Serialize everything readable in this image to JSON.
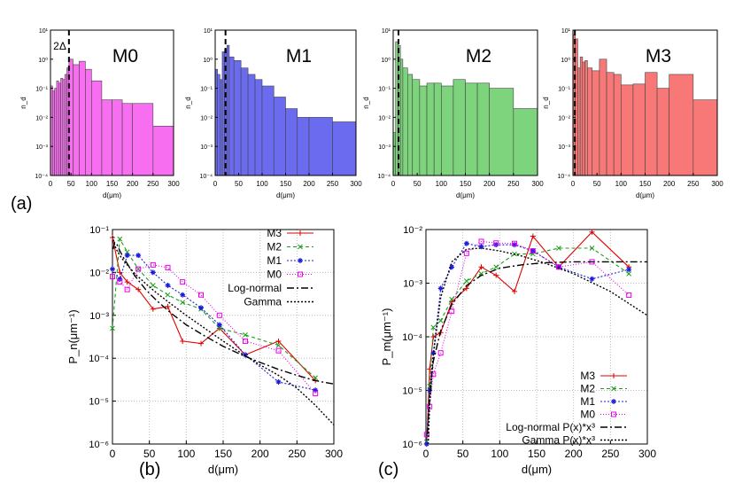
{
  "chart_data": [
    {
      "type": "bar",
      "title": "M0",
      "xlabel": "d(μm)",
      "ylabel": "n_d",
      "color": "#f86ef0",
      "annotation": "2Δ",
      "dashed_line_x": 45,
      "xlim": [
        0,
        300
      ],
      "ylim": [
        0.0001,
        10
      ],
      "xticks": [
        "0",
        "50",
        "100",
        "150",
        "200",
        "250",
        "300"
      ],
      "yticks": [
        "10⁻⁴",
        "10⁻³",
        "10⁻²",
        "10⁻¹",
        "10⁰",
        "10¹"
      ],
      "bins": [
        [
          0,
          5,
          0.12
        ],
        [
          5,
          10,
          0.08
        ],
        [
          10,
          15,
          0.1
        ],
        [
          15,
          20,
          0.18
        ],
        [
          20,
          25,
          0.15
        ],
        [
          25,
          30,
          0.22
        ],
        [
          30,
          35,
          0.2
        ],
        [
          35,
          40,
          0.3
        ],
        [
          40,
          45,
          0.5
        ],
        [
          45,
          55,
          1.0
        ],
        [
          55,
          70,
          0.65
        ],
        [
          70,
          85,
          0.85
        ],
        [
          85,
          100,
          0.45
        ],
        [
          100,
          125,
          0.18
        ],
        [
          125,
          150,
          0.04
        ],
        [
          150,
          175,
          0.04
        ],
        [
          175,
          200,
          0.03
        ],
        [
          200,
          250,
          0.03
        ],
        [
          250,
          300,
          0.005
        ]
      ]
    },
    {
      "type": "bar",
      "title": "M1",
      "xlabel": "d(μm)",
      "ylabel": "n_d",
      "color": "#6b6bf0",
      "dashed_line_x": 22,
      "xlim": [
        0,
        300
      ],
      "ylim": [
        0.0001,
        10
      ],
      "xticks": [
        "0",
        "50",
        "100",
        "150",
        "200",
        "250",
        "300"
      ],
      "yticks": [
        "10⁻⁴",
        "10⁻³",
        "10⁻²",
        "10⁻¹",
        "10⁰",
        "10¹"
      ],
      "bins": [
        [
          0,
          5,
          0.45
        ],
        [
          5,
          10,
          0.3
        ],
        [
          10,
          15,
          0.2
        ],
        [
          15,
          20,
          1.8
        ],
        [
          20,
          25,
          2.2
        ],
        [
          25,
          30,
          3.0
        ],
        [
          30,
          40,
          1.2
        ],
        [
          40,
          55,
          0.9
        ],
        [
          55,
          70,
          0.5
        ],
        [
          70,
          85,
          0.3
        ],
        [
          85,
          100,
          0.2
        ],
        [
          100,
          125,
          0.12
        ],
        [
          125,
          150,
          0.05
        ],
        [
          150,
          175,
          0.02
        ],
        [
          175,
          200,
          0.01
        ],
        [
          200,
          250,
          0.01
        ],
        [
          250,
          300,
          0.007
        ]
      ]
    },
    {
      "type": "bar",
      "title": "M2",
      "xlabel": "d(μm)",
      "ylabel": "n_d",
      "color": "#7dd47d",
      "dashed_line_x": 11,
      "xlim": [
        0,
        300
      ],
      "ylim": [
        0.0001,
        10
      ],
      "xticks": [
        "0",
        "50",
        "100",
        "150",
        "200",
        "250",
        "300"
      ],
      "yticks": [
        "10⁻⁴",
        "10⁻³",
        "10⁻²",
        "10⁻¹",
        "10⁰",
        "10¹"
      ],
      "bins": [
        [
          0,
          5,
          0.003
        ],
        [
          5,
          10,
          4.0
        ],
        [
          10,
          15,
          3.0
        ],
        [
          15,
          20,
          1.0
        ],
        [
          20,
          30,
          0.5
        ],
        [
          30,
          40,
          0.3
        ],
        [
          40,
          55,
          0.2
        ],
        [
          55,
          70,
          0.12
        ],
        [
          70,
          85,
          0.15
        ],
        [
          85,
          100,
          0.15
        ],
        [
          100,
          125,
          0.12
        ],
        [
          125,
          150,
          0.2
        ],
        [
          150,
          175,
          0.15
        ],
        [
          175,
          200,
          0.15
        ],
        [
          200,
          250,
          0.1
        ],
        [
          250,
          300,
          0.02
        ]
      ]
    },
    {
      "type": "bar",
      "title": "M3",
      "xlabel": "d(μm)",
      "ylabel": "n_d",
      "color": "#f87878",
      "dashed_line_x": 4,
      "xlim": [
        0,
        300
      ],
      "ylim": [
        0.0001,
        10
      ],
      "xticks": [
        "0",
        "50",
        "100",
        "150",
        "200",
        "250",
        "300"
      ],
      "yticks": [
        "10⁻⁴",
        "10⁻³",
        "10⁻²",
        "10⁻¹",
        "10⁰",
        "10¹"
      ],
      "bins": [
        [
          0,
          5,
          7.0
        ],
        [
          5,
          10,
          5.0
        ],
        [
          10,
          15,
          0.5
        ],
        [
          15,
          20,
          1.2
        ],
        [
          20,
          25,
          0.8
        ],
        [
          25,
          30,
          0.9
        ],
        [
          30,
          40,
          0.5
        ],
        [
          40,
          55,
          0.4
        ],
        [
          55,
          70,
          1.0
        ],
        [
          70,
          85,
          0.35
        ],
        [
          85,
          100,
          0.3
        ],
        [
          100,
          125,
          0.13
        ],
        [
          125,
          150,
          0.14
        ],
        [
          150,
          175,
          0.35
        ],
        [
          175,
          200,
          0.1
        ],
        [
          200,
          250,
          0.3
        ],
        [
          250,
          300,
          0.04
        ]
      ]
    },
    {
      "type": "line",
      "panel_label": "(b)",
      "xlabel": "d(μm)",
      "ylabel": "P_n(μm⁻¹)",
      "xlim": [
        0,
        300
      ],
      "ylim": [
        1e-06,
        0.1
      ],
      "xticks": [
        "0",
        "50",
        "100",
        "150",
        "200",
        "250",
        "300"
      ],
      "yticks": [
        "10⁻⁶",
        "10⁻⁵",
        "10⁻⁴",
        "10⁻³",
        "10⁻²",
        "10⁻¹"
      ],
      "legend_position": "top-right",
      "series": [
        {
          "name": "M3",
          "color": "#e00000",
          "dash": "",
          "marker": "plus",
          "x": [
            0,
            10,
            20,
            35,
            55,
            75,
            95,
            120,
            145,
            180,
            225,
            275
          ],
          "y": [
            0.065,
            0.01,
            0.006,
            0.004,
            0.0014,
            0.0016,
            0.00025,
            0.00022,
            0.0005,
            0.00012,
            0.00025,
            3e-05
          ]
        },
        {
          "name": "M2",
          "color": "#1c9e1c",
          "dash": "4,3",
          "marker": "x",
          "x": [
            0,
            10,
            20,
            35,
            55,
            75,
            95,
            120,
            145,
            180,
            225,
            275
          ],
          "y": [
            0.0005,
            0.06,
            0.03,
            0.012,
            0.005,
            0.003,
            0.002,
            0.0014,
            0.0005,
            0.00035,
            0.0002,
            3.5e-05
          ]
        },
        {
          "name": "M1",
          "color": "#1c1cdc",
          "dash": "2,2",
          "marker": "star",
          "x": [
            0,
            10,
            20,
            35,
            55,
            75,
            95,
            120,
            145,
            180,
            225,
            275
          ],
          "y": [
            0.012,
            0.007,
            0.025,
            0.025,
            0.01,
            0.005,
            0.003,
            0.0015,
            0.0006,
            0.00012,
            2.8e-05,
            1.8e-05
          ]
        },
        {
          "name": "M0",
          "color": "#ee00ee",
          "dash": "1,2",
          "marker": "square",
          "x": [
            0,
            10,
            20,
            35,
            55,
            75,
            95,
            120,
            145,
            180,
            225,
            275
          ],
          "y": [
            0.008,
            0.006,
            0.004,
            0.012,
            0.015,
            0.013,
            0.006,
            0.003,
            0.001,
            0.00025,
            0.00015,
            1.5e-05
          ]
        },
        {
          "name": "Log-normal",
          "color": "#000000",
          "dash": "8,3,2,3",
          "marker": "",
          "x": [
            1,
            3,
            6,
            10,
            15,
            20,
            30,
            45,
            60,
            80,
            100,
            125,
            150,
            175,
            200,
            225,
            250,
            275,
            300
          ],
          "y": [
            0.035,
            0.05,
            0.045,
            0.032,
            0.022,
            0.016,
            0.0085,
            0.004,
            0.0022,
            0.0011,
            0.0006,
            0.00033,
            0.00019,
            0.00012,
            8e-05,
            5.5e-05,
            4e-05,
            3e-05,
            2.5e-05
          ]
        },
        {
          "name": "Gamma",
          "color": "#000000",
          "dash": "2,2",
          "marker": "",
          "x": [
            0.5,
            2,
            5,
            10,
            15,
            20,
            30,
            45,
            60,
            80,
            100,
            125,
            150,
            175,
            200,
            225,
            250,
            275,
            300
          ],
          "y": [
            0.07,
            0.05,
            0.035,
            0.025,
            0.019,
            0.015,
            0.0095,
            0.0055,
            0.0033,
            0.0018,
            0.001,
            0.0005,
            0.00025,
            0.00013,
            7e-05,
            4e-05,
            2e-05,
            8e-06,
            2.8e-06
          ]
        }
      ]
    },
    {
      "type": "line",
      "panel_label": "(c)",
      "xlabel": "d(μm)",
      "ylabel": "P_m(μm⁻¹)",
      "xlim": [
        0,
        300
      ],
      "ylim": [
        1e-06,
        0.01
      ],
      "xticks": [
        "0",
        "50",
        "100",
        "150",
        "200",
        "250",
        "300"
      ],
      "yticks": [
        "10⁻⁶",
        "10⁻⁵",
        "10⁻⁴",
        "10⁻³",
        "10⁻²"
      ],
      "legend_position": "bottom-right",
      "series": [
        {
          "name": "M3",
          "color": "#e00000",
          "dash": "",
          "marker": "plus",
          "x": [
            1,
            5,
            10,
            20,
            35,
            55,
            75,
            95,
            120,
            145,
            180,
            225,
            275
          ],
          "y": [
            1e-06,
            2.5e-05,
            0.0001,
            0.00012,
            0.00045,
            0.0008,
            0.002,
            0.0014,
            0.0007,
            0.0075,
            0.002,
            0.009,
            0.002
          ]
        },
        {
          "name": "M2",
          "color": "#1c9e1c",
          "dash": "4,3",
          "marker": "x",
          "x": [
            1,
            5,
            10,
            20,
            35,
            55,
            75,
            95,
            120,
            145,
            180,
            225,
            275
          ],
          "y": [
            1.1e-06,
            1.2e-05,
            0.00015,
            0.0002,
            0.0005,
            0.0011,
            0.0015,
            0.002,
            0.0035,
            0.0035,
            0.0045,
            0.0045,
            0.0015
          ]
        },
        {
          "name": "M1",
          "color": "#1c1cdc",
          "dash": "2,2",
          "marker": "star",
          "x": [
            1,
            5,
            10,
            20,
            35,
            55,
            75,
            95,
            120,
            145,
            180,
            225,
            275
          ],
          "y": [
            1e-06,
            1e-05,
            5e-05,
            0.0008,
            0.002,
            0.0055,
            0.0048,
            0.0052,
            0.0052,
            0.004,
            0.002,
            0.0012,
            0.0018
          ]
        },
        {
          "name": "M0",
          "color": "#ee00ee",
          "dash": "1,2",
          "marker": "square",
          "x": [
            1,
            5,
            10,
            20,
            35,
            55,
            75,
            95,
            120,
            145,
            180,
            225,
            275
          ],
          "y": [
            1.5e-06,
            5e-06,
            2e-05,
            5e-05,
            0.0003,
            0.0036,
            0.006,
            0.0056,
            0.0055,
            0.004,
            0.002,
            0.0025,
            0.0006
          ]
        },
        {
          "name": "Log-normal P(x)*x³",
          "color": "#000000",
          "dash": "8,3,2,3",
          "marker": "",
          "x": [
            2,
            5,
            10,
            20,
            35,
            55,
            75,
            100,
            130,
            160,
            200,
            250,
            300
          ],
          "y": [
            1.5e-06,
            8e-06,
            3.5e-05,
            0.00013,
            0.0004,
            0.0009,
            0.0014,
            0.0019,
            0.0022,
            0.0024,
            0.0025,
            0.0025,
            0.0025
          ]
        },
        {
          "name": "Gamma P(x)*x³",
          "color": "#000000",
          "dash": "2,2",
          "marker": "",
          "x": [
            3,
            5,
            10,
            20,
            35,
            55,
            75,
            100,
            130,
            160,
            200,
            250,
            300
          ],
          "y": [
            1e-06,
            5.5e-06,
            4.5e-05,
            0.00055,
            0.0025,
            0.0043,
            0.0045,
            0.004,
            0.0032,
            0.0024,
            0.0015,
            0.0007,
            0.00025
          ]
        }
      ]
    }
  ],
  "panel_labels": {
    "a": "(a)",
    "b": "(b)",
    "c": "(c)"
  }
}
